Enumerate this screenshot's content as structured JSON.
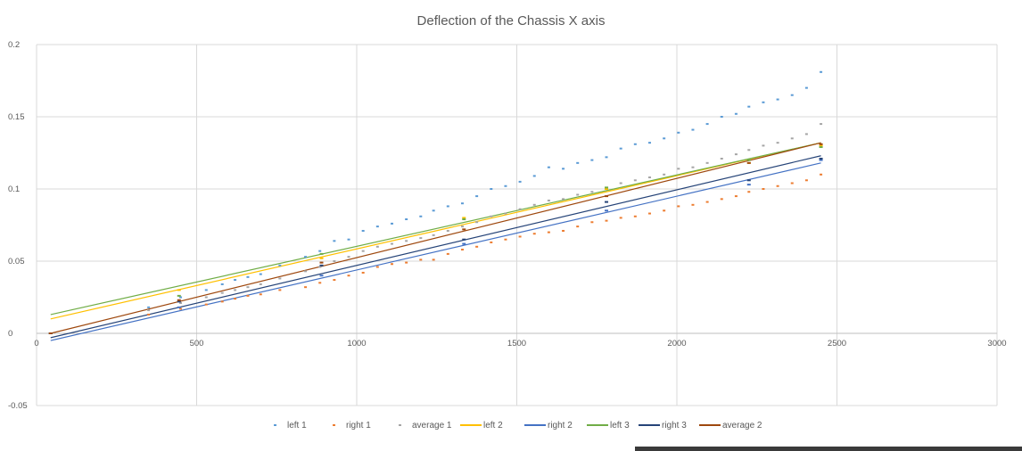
{
  "chart_data": {
    "type": "scatter",
    "title": "Deflection of the Chassis X axis",
    "xlabel": "",
    "ylabel": "",
    "xlim": [
      0,
      3000
    ],
    "ylim": [
      -0.05,
      0.2
    ],
    "x_ticks": [
      "0",
      "500",
      "1000",
      "1500",
      "2000",
      "2500",
      "3000"
    ],
    "y_ticks": [
      "0.2",
      "0.15",
      "0.1",
      "0.05",
      "0",
      "-0.05"
    ],
    "grid": true,
    "legend_position": "bottom",
    "series": [
      {
        "name": "left 1",
        "kind": "markers",
        "color": "#5B9BD5",
        "x": [
          44,
          350,
          450,
          530,
          580,
          620,
          660,
          700,
          760,
          840,
          885,
          930,
          975,
          1020,
          1065,
          1110,
          1155,
          1200,
          1240,
          1285,
          1330,
          1375,
          1420,
          1465,
          1510,
          1555,
          1600,
          1645,
          1690,
          1735,
          1780,
          1825,
          1870,
          1915,
          1960,
          2005,
          2050,
          2095,
          2140,
          2185,
          2225,
          2270,
          2315,
          2360,
          2405,
          2450
        ],
        "y": [
          0.0,
          0.018,
          0.025,
          0.03,
          0.034,
          0.037,
          0.039,
          0.041,
          0.047,
          0.053,
          0.057,
          0.064,
          0.065,
          0.071,
          0.074,
          0.076,
          0.079,
          0.081,
          0.085,
          0.088,
          0.09,
          0.095,
          0.1,
          0.102,
          0.105,
          0.109,
          0.115,
          0.114,
          0.118,
          0.12,
          0.122,
          0.128,
          0.131,
          0.132,
          0.135,
          0.139,
          0.141,
          0.145,
          0.15,
          0.152,
          0.157,
          0.16,
          0.162,
          0.165,
          0.17,
          0.181
        ]
      },
      {
        "name": "right 1",
        "kind": "markers",
        "color": "#ED7D31",
        "x": [
          44,
          350,
          450,
          530,
          580,
          620,
          660,
          700,
          760,
          840,
          885,
          930,
          975,
          1020,
          1065,
          1110,
          1155,
          1200,
          1240,
          1285,
          1330,
          1375,
          1420,
          1465,
          1510,
          1555,
          1600,
          1645,
          1690,
          1735,
          1780,
          1825,
          1870,
          1915,
          1960,
          2005,
          2050,
          2095,
          2140,
          2185,
          2225,
          2270,
          2315,
          2360,
          2405,
          2450
        ],
        "y": [
          0.0,
          0.013,
          0.017,
          0.02,
          0.022,
          0.024,
          0.026,
          0.027,
          0.03,
          0.032,
          0.035,
          0.037,
          0.04,
          0.042,
          0.046,
          0.048,
          0.049,
          0.051,
          0.051,
          0.055,
          0.058,
          0.06,
          0.063,
          0.065,
          0.067,
          0.069,
          0.07,
          0.071,
          0.074,
          0.077,
          0.078,
          0.08,
          0.081,
          0.083,
          0.085,
          0.088,
          0.089,
          0.091,
          0.093,
          0.095,
          0.098,
          0.1,
          0.102,
          0.104,
          0.106,
          0.11
        ]
      },
      {
        "name": "average 1",
        "kind": "markers",
        "color": "#A5A5A5",
        "x": [
          44,
          350,
          450,
          530,
          580,
          620,
          660,
          700,
          760,
          840,
          885,
          930,
          975,
          1020,
          1065,
          1110,
          1155,
          1200,
          1240,
          1285,
          1330,
          1375,
          1420,
          1465,
          1510,
          1555,
          1600,
          1645,
          1690,
          1735,
          1780,
          1825,
          1870,
          1915,
          1960,
          2005,
          2050,
          2095,
          2140,
          2185,
          2225,
          2270,
          2315,
          2360,
          2405,
          2450
        ],
        "y": [
          0.0,
          0.016,
          0.021,
          0.025,
          0.028,
          0.03,
          0.032,
          0.034,
          0.038,
          0.043,
          0.046,
          0.05,
          0.053,
          0.057,
          0.06,
          0.062,
          0.064,
          0.066,
          0.068,
          0.071,
          0.074,
          0.077,
          0.081,
          0.083,
          0.086,
          0.089,
          0.092,
          0.093,
          0.096,
          0.098,
          0.1,
          0.104,
          0.106,
          0.108,
          0.11,
          0.114,
          0.115,
          0.118,
          0.121,
          0.124,
          0.127,
          0.13,
          0.132,
          0.135,
          0.138,
          0.145
        ]
      },
      {
        "name": "left 2",
        "kind": "markers+trendline",
        "color": "#FFC000",
        "x": [
          44,
          445,
          890,
          1335,
          1780,
          2225,
          2450
        ],
        "y": [
          0.0,
          0.03,
          0.052,
          0.08,
          0.1,
          0.118,
          0.13
        ],
        "trend": [
          [
            44,
            0.01
          ],
          [
            2450,
            0.132
          ]
        ]
      },
      {
        "name": "right 2",
        "kind": "markers+trendline",
        "color": "#4472C4",
        "x": [
          44,
          445,
          890,
          1335,
          1780,
          2225,
          2450
        ],
        "y": [
          0.0,
          0.018,
          0.04,
          0.062,
          0.085,
          0.103,
          0.12
        ],
        "trend": [
          [
            44,
            -0.005
          ],
          [
            2450,
            0.118
          ]
        ]
      },
      {
        "name": "left 3",
        "kind": "markers+trendline",
        "color": "#70AD47",
        "x": [
          44,
          445,
          890,
          1335,
          1780,
          2225,
          2450
        ],
        "y": [
          0.0,
          0.026,
          0.055,
          0.079,
          0.101,
          0.12,
          0.129
        ],
        "trend": [
          [
            44,
            0.013
          ],
          [
            2450,
            0.132
          ]
        ]
      },
      {
        "name": "right 3",
        "kind": "markers+trendline",
        "color": "#264478",
        "x": [
          44,
          445,
          890,
          1335,
          1780,
          2225,
          2450
        ],
        "y": [
          0.0,
          0.022,
          0.047,
          0.065,
          0.091,
          0.106,
          0.121
        ],
        "trend": [
          [
            44,
            -0.003
          ],
          [
            2450,
            0.123
          ]
        ]
      },
      {
        "name": "average 2",
        "kind": "markers+trendline",
        "color": "#9E480E",
        "x": [
          44,
          445,
          890,
          1335,
          1780,
          2225,
          2450
        ],
        "y": [
          0.0,
          0.023,
          0.049,
          0.072,
          0.095,
          0.118,
          0.131
        ],
        "trend": [
          [
            44,
            0.0
          ],
          [
            2450,
            0.132
          ]
        ]
      }
    ]
  }
}
